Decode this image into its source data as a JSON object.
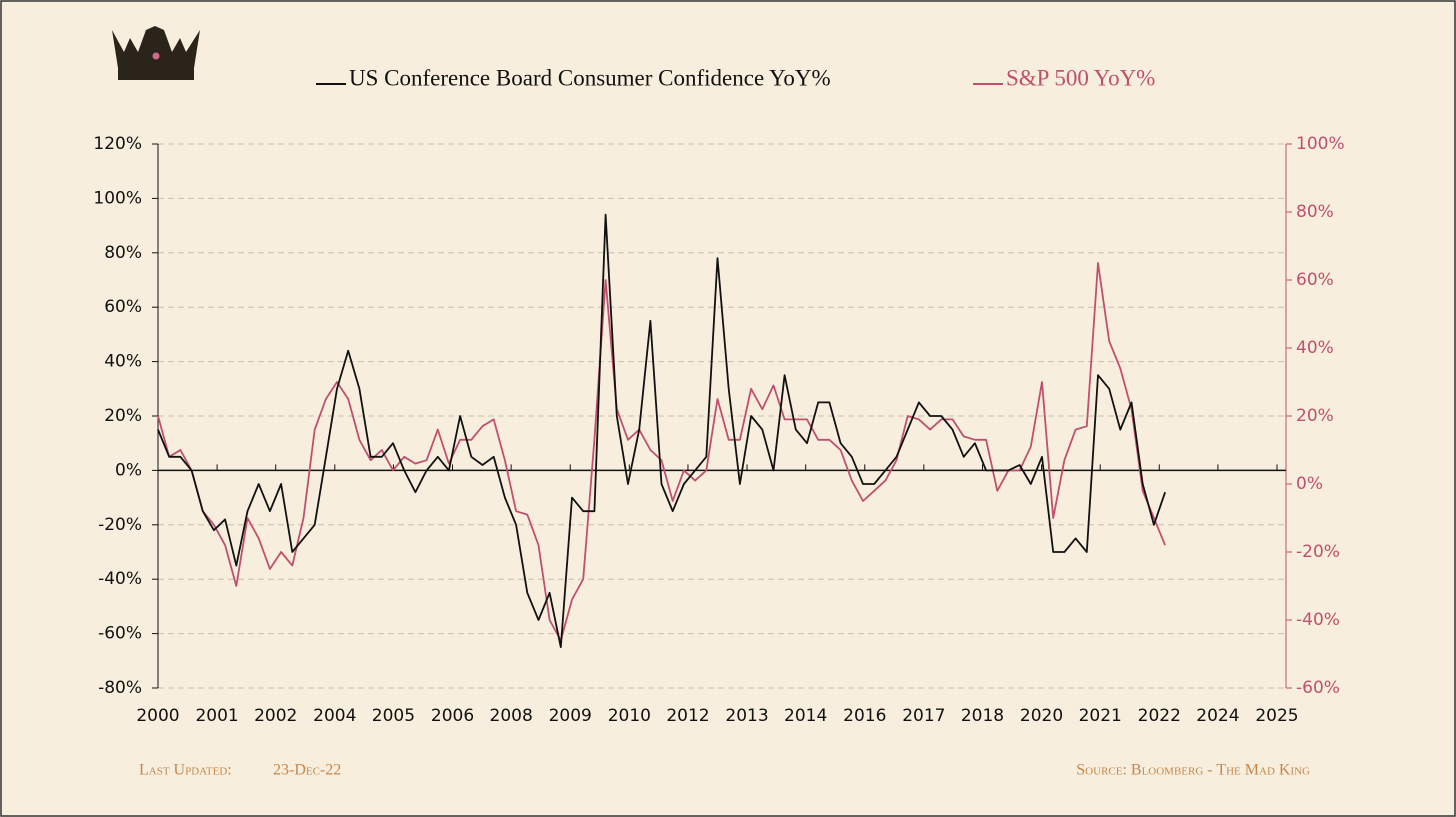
{
  "chart_data": {
    "type": "line",
    "series": [
      {
        "name": "US Conference Board Consumer Confidence YoY%",
        "color": "#111111",
        "axis": "y",
        "values": [
          15,
          5,
          5,
          0,
          -15,
          -22,
          -18,
          -35,
          -15,
          -5,
          -15,
          -5,
          -30,
          -25,
          -20,
          5,
          30,
          44,
          30,
          5,
          5,
          10,
          0,
          -8,
          0,
          5,
          0,
          20,
          5,
          2,
          5,
          -10,
          -20,
          -45,
          -55,
          -45,
          -65,
          -10,
          -15,
          -15,
          94,
          20,
          -5,
          15,
          55,
          -5,
          -15,
          -5,
          0,
          5,
          78,
          30,
          -5,
          20,
          15,
          0,
          35,
          15,
          10,
          25,
          25,
          10,
          5,
          -5,
          -5,
          0,
          5,
          15,
          25,
          20,
          20,
          15,
          5,
          10,
          0,
          0,
          0,
          2,
          -5,
          5,
          -30,
          -30,
          -25,
          -30,
          35,
          30,
          15,
          25,
          -5,
          -20,
          -8
        ]
      },
      {
        "name": "S&P 500 YoY%",
        "color": "#c0506e",
        "axis": "y2",
        "values": [
          20,
          8,
          10,
          4,
          -8,
          -12,
          -18,
          -30,
          -10,
          -16,
          -25,
          -20,
          -24,
          -10,
          16,
          25,
          30,
          25,
          13,
          7,
          10,
          4,
          8,
          6,
          7,
          16,
          6,
          13,
          13,
          17,
          19,
          7,
          -8,
          -9,
          -18,
          -40,
          -46,
          -34,
          -28,
          13,
          60,
          22,
          13,
          16,
          10,
          7,
          -5,
          4,
          1,
          4,
          25,
          13,
          13,
          28,
          22,
          29,
          19,
          19,
          19,
          13,
          13,
          10,
          1,
          -5,
          -2,
          1,
          7,
          20,
          19,
          16,
          19,
          19,
          14,
          13,
          13,
          -2,
          4,
          4,
          11,
          30,
          -10,
          7,
          16,
          17,
          65,
          42,
          34,
          22,
          -2,
          -10,
          -18
        ]
      }
    ],
    "x": [
      2000,
      2000.25,
      2000.5,
      2000.75,
      2001,
      2001.25,
      2001.5,
      2001.75,
      2002,
      2002.25,
      2002.5,
      2002.75,
      2003,
      2003.25,
      2003.5,
      2003.75,
      2004,
      2004.25,
      2004.5,
      2004.75,
      2005,
      2005.25,
      2005.5,
      2005.75,
      2006,
      2006.25,
      2006.5,
      2006.75,
      2007,
      2007.25,
      2007.5,
      2007.75,
      2008,
      2008.25,
      2008.5,
      2008.75,
      2009,
      2009.25,
      2009.5,
      2009.75,
      2010,
      2010.25,
      2010.5,
      2010.75,
      2011,
      2011.25,
      2011.5,
      2011.75,
      2012,
      2012.25,
      2012.5,
      2012.75,
      2013,
      2013.25,
      2013.5,
      2013.75,
      2014,
      2014.25,
      2014.5,
      2014.75,
      2015,
      2015.25,
      2015.5,
      2015.75,
      2016,
      2016.25,
      2016.5,
      2016.75,
      2017,
      2017.25,
      2017.5,
      2017.75,
      2018,
      2018.25,
      2018.5,
      2018.75,
      2019,
      2019.25,
      2019.5,
      2019.75,
      2020,
      2020.25,
      2020.5,
      2020.75,
      2021,
      2021.25,
      2021.5,
      2021.75,
      2022,
      2022.25,
      2022.5
    ],
    "xlim": [
      2000,
      2025
    ],
    "xticks": [
      {
        "value": 2000,
        "label": "2000"
      },
      {
        "value": 2001.32,
        "label": "2001"
      },
      {
        "value": 2002.63,
        "label": "2002"
      },
      {
        "value": 2003.95,
        "label": "2004"
      },
      {
        "value": 2005.26,
        "label": "2005"
      },
      {
        "value": 2006.58,
        "label": "2006"
      },
      {
        "value": 2007.89,
        "label": "2008"
      },
      {
        "value": 2009.21,
        "label": "2009"
      },
      {
        "value": 2010.53,
        "label": "2010"
      },
      {
        "value": 2011.84,
        "label": "2012"
      },
      {
        "value": 2013.16,
        "label": "2013"
      },
      {
        "value": 2014.47,
        "label": "2014"
      },
      {
        "value": 2015.79,
        "label": "2016"
      },
      {
        "value": 2017.11,
        "label": "2017"
      },
      {
        "value": 2018.42,
        "label": "2018"
      },
      {
        "value": 2019.74,
        "label": "2020"
      },
      {
        "value": 2021.05,
        "label": "2021"
      },
      {
        "value": 2022.37,
        "label": "2022"
      },
      {
        "value": 2023.68,
        "label": "2024"
      },
      {
        "value": 2025,
        "label": "2025"
      }
    ],
    "ylim": [
      -80,
      120
    ],
    "yticks": [
      {
        "value": -80,
        "label": "-80%"
      },
      {
        "value": -60,
        "label": "-60%"
      },
      {
        "value": -40,
        "label": "-40%"
      },
      {
        "value": -20,
        "label": "-20%"
      },
      {
        "value": 0,
        "label": "0%"
      },
      {
        "value": 20,
        "label": "20%"
      },
      {
        "value": 40,
        "label": "40%"
      },
      {
        "value": 60,
        "label": "60%"
      },
      {
        "value": 80,
        "label": "80%"
      },
      {
        "value": 100,
        "label": "100%"
      },
      {
        "value": 120,
        "label": "120%"
      }
    ],
    "y2lim": [
      -60,
      100
    ],
    "y2ticks": [
      {
        "value": -60,
        "label": "-60%"
      },
      {
        "value": -40,
        "label": "-40%"
      },
      {
        "value": -20,
        "label": "-20%"
      },
      {
        "value": 0,
        "label": "0%"
      },
      {
        "value": 20,
        "label": "20%"
      },
      {
        "value": 40,
        "label": "40%"
      },
      {
        "value": 60,
        "label": "60%"
      },
      {
        "value": 80,
        "label": "80%"
      },
      {
        "value": 100,
        "label": "100%"
      }
    ],
    "grid": true,
    "footer_left_label": "Last Updated:",
    "footer_left_value": "23-Dec-22",
    "footer_right": "Source: Bloomberg - The Mad King"
  }
}
